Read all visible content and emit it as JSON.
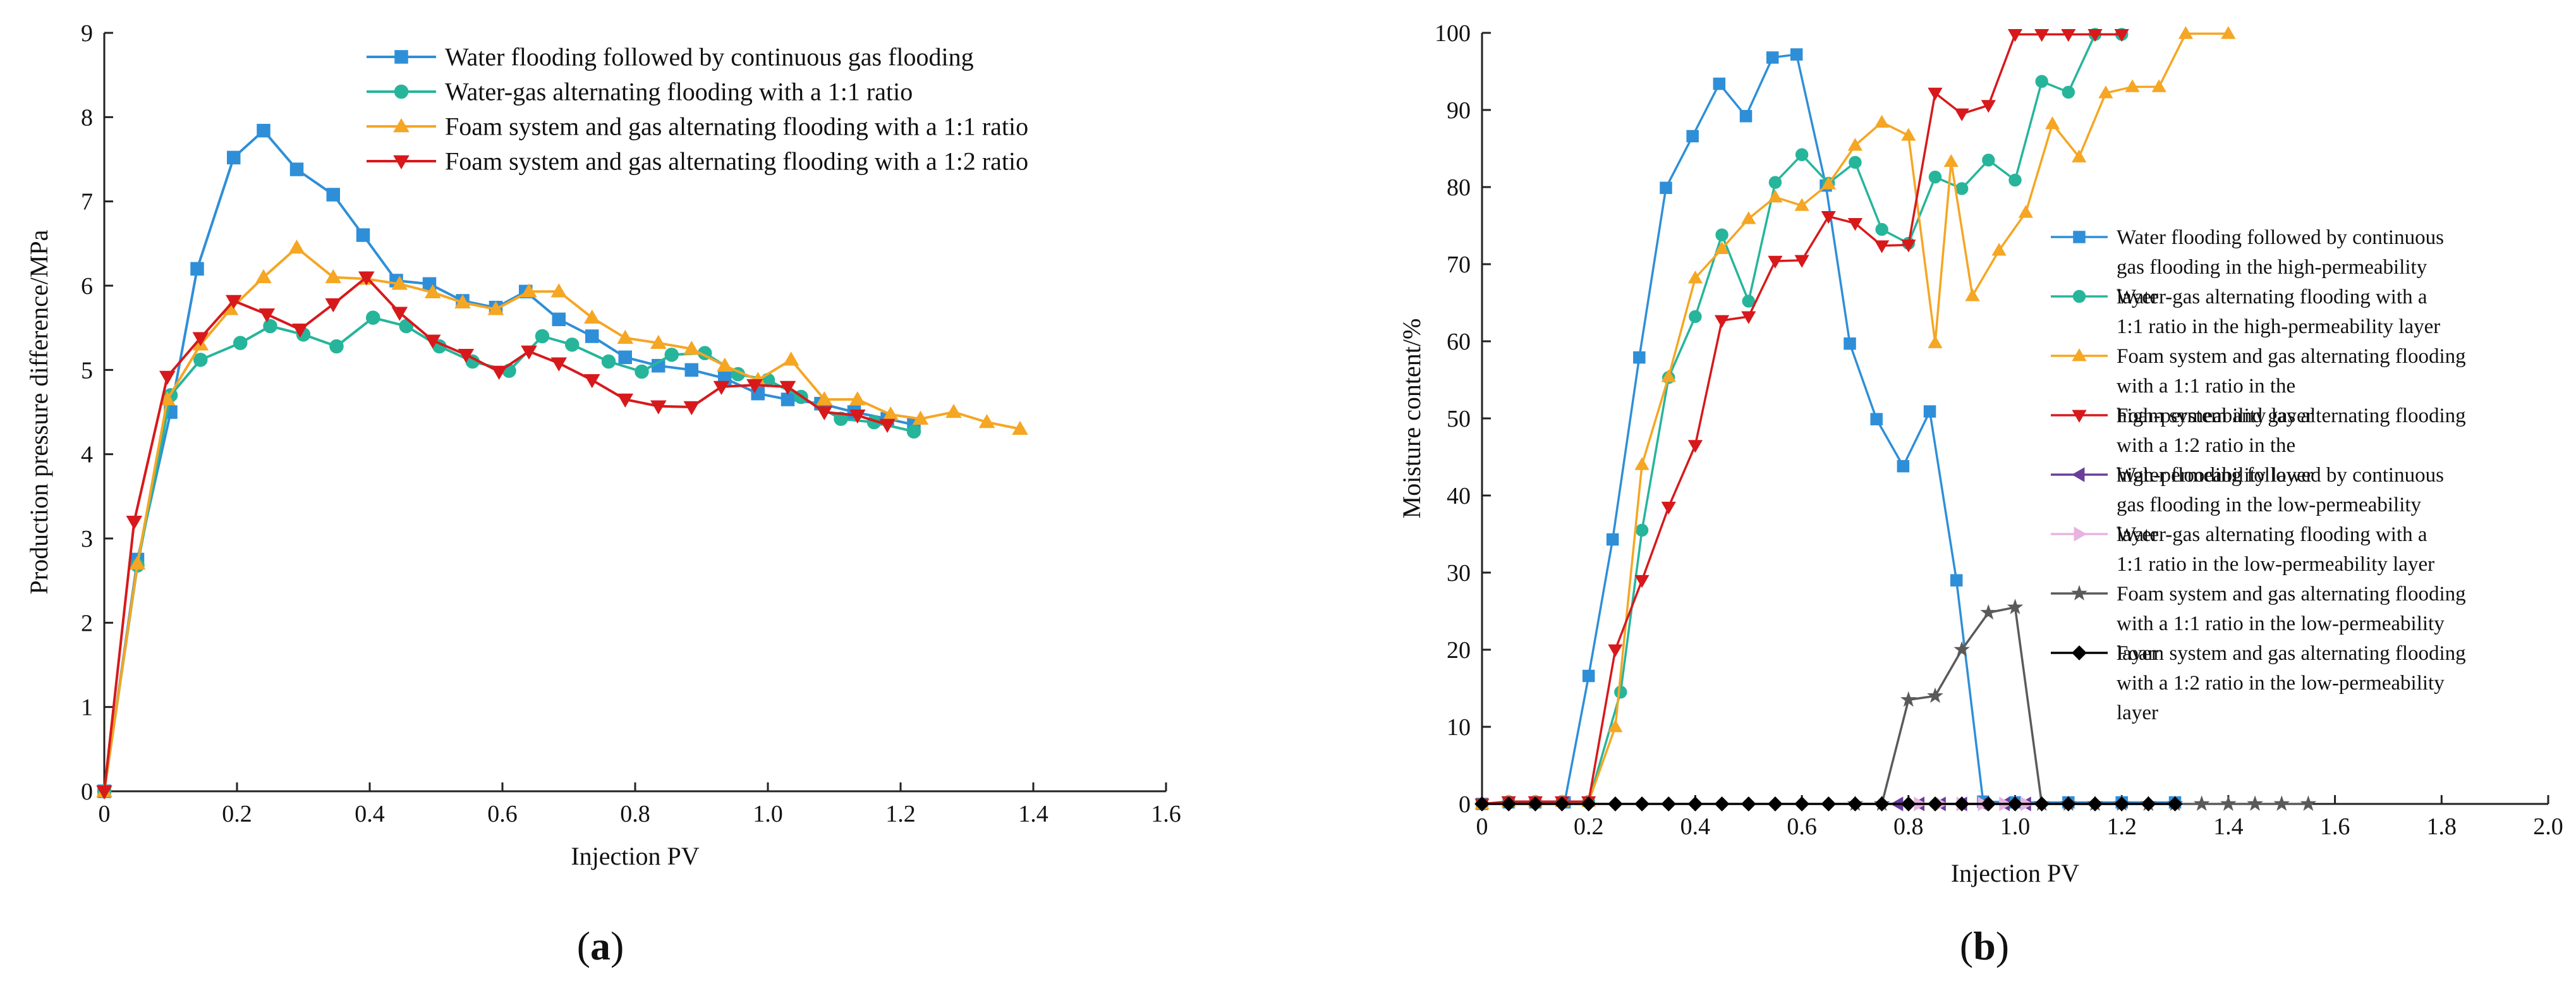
{
  "chart_data": [
    {
      "type": "line",
      "panel_label": "a",
      "title": "",
      "xlabel": "Injection PV",
      "ylabel": "Production pressure difference/MPa",
      "xlim": [
        0,
        1.6
      ],
      "ylim": [
        0,
        9
      ],
      "xticks": [
        "0",
        "0.2",
        "0.4",
        "0.6",
        "0.8",
        "1.0",
        "1.2",
        "1.4",
        "1.6"
      ],
      "yticks": [
        "0",
        "1",
        "2",
        "3",
        "4",
        "5",
        "6",
        "7",
        "8",
        "9"
      ],
      "legend_position": "top-right",
      "series": [
        {
          "name": "Water flooding followed by continuous gas flooding",
          "color": "#2e8fd8",
          "marker": "square",
          "x": [
            0,
            0.05,
            0.1,
            0.14,
            0.195,
            0.24,
            0.29,
            0.345,
            0.39,
            0.44,
            0.49,
            0.54,
            0.59,
            0.635,
            0.685,
            0.735,
            0.785,
            0.835,
            0.885,
            0.935,
            0.985,
            1.03,
            1.08,
            1.13,
            1.18,
            1.22
          ],
          "y": [
            0,
            2.75,
            4.5,
            6.2,
            7.52,
            7.84,
            7.38,
            7.08,
            6.6,
            6.06,
            6.02,
            5.82,
            5.74,
            5.93,
            5.6,
            5.4,
            5.15,
            5.05,
            5.0,
            4.9,
            4.72,
            4.65,
            4.6,
            4.5,
            4.42,
            4.35
          ]
        },
        {
          "name": "Water-gas alternating flooding with a 1:1 ratio",
          "color": "#26b59b",
          "marker": "circle",
          "x": [
            0,
            0.05,
            0.1,
            0.145,
            0.205,
            0.25,
            0.3,
            0.35,
            0.405,
            0.455,
            0.505,
            0.555,
            0.61,
            0.66,
            0.705,
            0.76,
            0.81,
            0.855,
            0.905,
            0.955,
            1.0,
            1.05,
            1.11,
            1.16,
            1.22
          ],
          "y": [
            0,
            2.68,
            4.7,
            5.12,
            5.32,
            5.52,
            5.42,
            5.28,
            5.62,
            5.52,
            5.28,
            5.1,
            4.99,
            5.4,
            5.3,
            5.1,
            4.98,
            5.18,
            5.2,
            4.95,
            4.88,
            4.68,
            4.42,
            4.38,
            4.27
          ]
        },
        {
          "name": "Foam system and gas alternating flooding with a 1:1 ratio",
          "color": "#f5a623",
          "marker": "triangle-up",
          "x": [
            0,
            0.05,
            0.095,
            0.145,
            0.19,
            0.24,
            0.29,
            0.345,
            0.395,
            0.445,
            0.495,
            0.54,
            0.59,
            0.64,
            0.685,
            0.735,
            0.785,
            0.835,
            0.885,
            0.935,
            0.985,
            1.035,
            1.085,
            1.135,
            1.185,
            1.23,
            1.28,
            1.33,
            1.38
          ],
          "y": [
            0,
            2.7,
            4.65,
            5.3,
            5.72,
            6.1,
            6.45,
            6.1,
            6.08,
            6.02,
            5.92,
            5.8,
            5.72,
            5.93,
            5.93,
            5.62,
            5.38,
            5.32,
            5.25,
            5.05,
            4.88,
            5.12,
            4.65,
            4.65,
            4.47,
            4.42,
            4.5,
            4.38,
            4.3
          ]
        },
        {
          "name": "Foam system and gas alternating flooding with a 1:2 ratio",
          "color": "#d7191c",
          "marker": "triangle-down",
          "x": [
            0,
            0.045,
            0.095,
            0.145,
            0.195,
            0.245,
            0.295,
            0.345,
            0.395,
            0.445,
            0.495,
            0.545,
            0.595,
            0.64,
            0.685,
            0.735,
            0.785,
            0.835,
            0.885,
            0.93,
            0.98,
            1.03,
            1.085,
            1.135,
            1.18
          ],
          "y": [
            0,
            3.2,
            4.92,
            5.38,
            5.82,
            5.66,
            5.48,
            5.78,
            6.1,
            5.68,
            5.35,
            5.18,
            4.98,
            5.22,
            5.08,
            4.88,
            4.65,
            4.57,
            4.56,
            4.8,
            4.82,
            4.8,
            4.5,
            4.46,
            4.35
          ]
        }
      ]
    },
    {
      "type": "line",
      "panel_label": "b",
      "title": "",
      "xlabel": "Injection PV",
      "ylabel": "Moisture content/%",
      "xlim": [
        0,
        2.0
      ],
      "ylim": [
        0,
        100
      ],
      "xticks": [
        "0",
        "0.2",
        "0.4",
        "0.6",
        "0.8",
        "1.0",
        "1.2",
        "1.4",
        "1.6",
        "1.8",
        "2.0"
      ],
      "yticks": [
        "0",
        "10",
        "20",
        "30",
        "40",
        "50",
        "60",
        "70",
        "80",
        "90",
        "100"
      ],
      "legend_position": "right",
      "series": [
        {
          "name": "Water flooding followed by continuous gas flooding in the high-permeability layer",
          "color": "#2e8fd8",
          "marker": "square",
          "x": [
            0,
            0.05,
            0.1,
            0.155,
            0.2,
            0.245,
            0.295,
            0.345,
            0.395,
            0.445,
            0.495,
            0.545,
            0.59,
            0.645,
            0.69,
            0.74,
            0.79,
            0.84,
            0.89,
            0.94,
            1.0,
            1.1,
            1.2,
            1.3
          ],
          "y": [
            0,
            0.2,
            0.2,
            0.2,
            16.6,
            34.3,
            57.9,
            79.9,
            86.6,
            93.4,
            89.2,
            96.8,
            97.2,
            80.2,
            59.7,
            49.9,
            43.8,
            50.9,
            29.0,
            0.3,
            0.2,
            0.2,
            0.2,
            0.2
          ]
        },
        {
          "name": "Water-gas alternating flooding with a 1:1 ratio in the high-permeability layer",
          "color": "#26b59b",
          "marker": "circle",
          "x": [
            0,
            0.05,
            0.1,
            0.15,
            0.2,
            0.26,
            0.3,
            0.35,
            0.4,
            0.45,
            0.5,
            0.55,
            0.6,
            0.65,
            0.7,
            0.75,
            0.8,
            0.85,
            0.9,
            0.95,
            1.0,
            1.05,
            1.1,
            1.15,
            1.2
          ],
          "y": [
            0,
            0.3,
            0.3,
            0.3,
            0.3,
            14.5,
            35.5,
            55.3,
            63.2,
            73.8,
            65.2,
            80.6,
            84.2,
            80.5,
            83.2,
            74.5,
            72.7,
            81.3,
            79.8,
            83.5,
            80.9,
            93.7,
            92.3,
            99.8,
            99.8
          ]
        },
        {
          "name": "Foam system and gas alternating flooding with a 1:1 ratio in the high-permeability layer",
          "color": "#f5a623",
          "marker": "triangle-up",
          "x": [
            0,
            0.05,
            0.1,
            0.15,
            0.2,
            0.25,
            0.3,
            0.35,
            0.4,
            0.45,
            0.5,
            0.55,
            0.6,
            0.65,
            0.7,
            0.75,
            0.8,
            0.85,
            0.88,
            0.92,
            0.97,
            1.02,
            1.07,
            1.12,
            1.17,
            1.22,
            1.27,
            1.32,
            1.4
          ],
          "y": [
            0,
            0.3,
            0.3,
            0.3,
            0.3,
            10.0,
            44.0,
            55.4,
            68.2,
            72.0,
            75.9,
            78.7,
            77.6,
            80.4,
            85.4,
            88.4,
            86.7,
            59.8,
            83.3,
            65.9,
            71.8,
            76.7,
            88.2,
            83.9,
            92.2,
            93.0,
            93.0,
            99.9,
            99.9
          ]
        },
        {
          "name": "Foam system and gas alternating flooding with a 1:2 ratio in the high-permeability layer",
          "color": "#d7191c",
          "marker": "triangle-down",
          "x": [
            0,
            0.05,
            0.1,
            0.15,
            0.2,
            0.25,
            0.3,
            0.35,
            0.4,
            0.45,
            0.5,
            0.55,
            0.6,
            0.65,
            0.7,
            0.75,
            0.8,
            0.85,
            0.9,
            0.95,
            1.0,
            1.05,
            1.1,
            1.15,
            1.2
          ],
          "y": [
            0,
            0.3,
            0.3,
            0.3,
            0.3,
            20.0,
            29.0,
            38.5,
            46.5,
            62.7,
            63.2,
            70.4,
            70.5,
            76.2,
            75.3,
            72.4,
            72.5,
            92.2,
            89.5,
            90.6,
            99.8,
            99.8,
            99.8,
            99.8,
            99.8
          ]
        },
        {
          "name": "Water flooding followed by continuous gas flooding in the low-permeability layer",
          "color": "#6a3d9a",
          "marker": "triangle-left",
          "x": [
            0.78,
            0.82,
            0.86,
            0.9,
            0.94,
            0.98,
            1.02
          ],
          "y": [
            0,
            0,
            0,
            0,
            0,
            0,
            0
          ]
        },
        {
          "name": "Water-gas alternating flooding with a 1:1 ratio in the low-permeability layer",
          "color": "#e8b3e0",
          "marker": "triangle-right",
          "x": [
            0.82,
            0.86,
            0.9,
            0.94,
            0.98,
            1.02
          ],
          "y": [
            0,
            0,
            0,
            0,
            0,
            0
          ]
        },
        {
          "name": "Foam system and gas alternating flooding with a 1:1 ratio in the low-permeability layer",
          "color": "#5a5a5a",
          "marker": "star",
          "x": [
            0.7,
            0.75,
            0.8,
            0.85,
            0.9,
            0.95,
            1.0,
            1.05,
            1.1,
            1.15,
            1.2,
            1.25,
            1.3,
            1.35,
            1.4,
            1.45,
            1.5,
            1.55
          ],
          "y": [
            0,
            0,
            13.5,
            14.0,
            20.0,
            24.8,
            25.5,
            0,
            0,
            0,
            0,
            0,
            0,
            0,
            0,
            0,
            0,
            0
          ]
        },
        {
          "name": "Foam system and gas alternating flooding with a 1:2 ratio in the low-permeability layer",
          "color": "#000000",
          "marker": "diamond",
          "x": [
            0,
            0.05,
            0.1,
            0.15,
            0.2,
            0.25,
            0.3,
            0.35,
            0.4,
            0.45,
            0.5,
            0.55,
            0.6,
            0.65,
            0.7,
            0.75,
            0.8,
            0.85,
            0.9,
            0.95,
            1.0,
            1.05,
            1.1,
            1.15,
            1.2,
            1.25,
            1.3
          ],
          "y": [
            0,
            0,
            0,
            0,
            0,
            0,
            0,
            0,
            0,
            0,
            0,
            0,
            0,
            0,
            0,
            0,
            0,
            0,
            0,
            0,
            0,
            0,
            0,
            0,
            0,
            0,
            0
          ]
        }
      ]
    }
  ]
}
